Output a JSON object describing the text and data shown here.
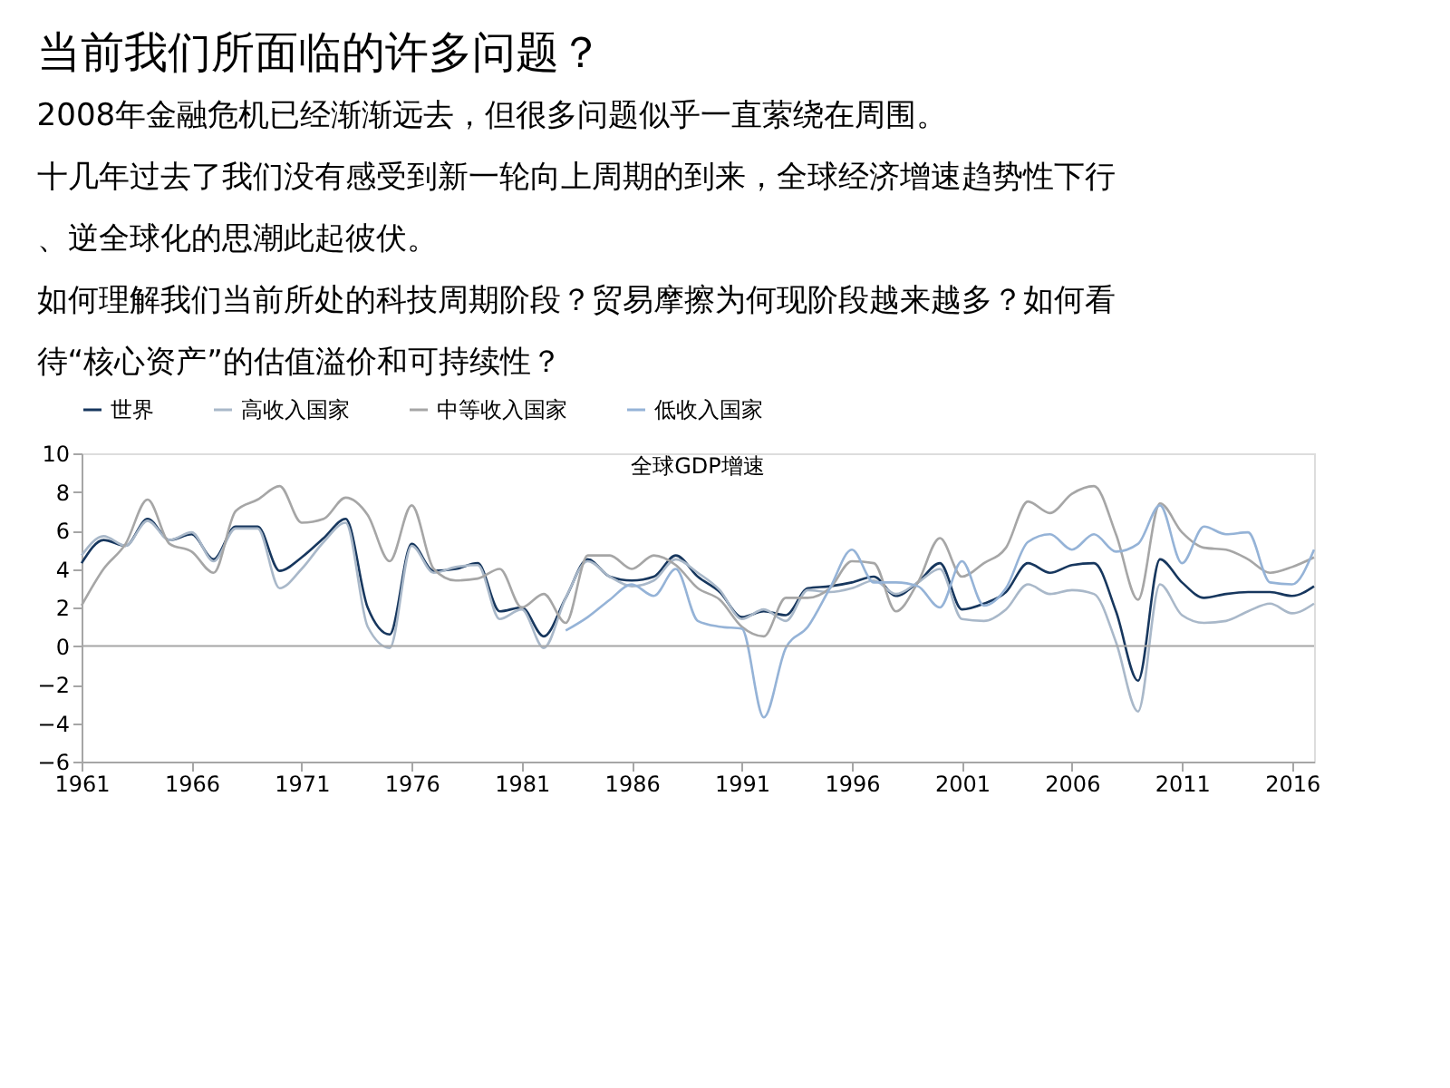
{
  "chart_data": {
    "type": "line",
    "title": "当前我们所面临的许多问题？",
    "subtitle": "全球GDP增速",
    "annotations": [
      "2008年金融危机已经渐渐远去，但很多问题似乎一直萦绕在周围。",
      "十几年过去了我们没有感受到新一轮向上周期的到来，全球经济增速趋势性下行、逆全球化的思潮此起彼伏。",
      "如何理解我们当前所处的科技周期阶段？贸易摩擦为何现阶段越来越多？如何看待“核心资产”的估值溢价和可持续性？"
    ],
    "x": [
      1961,
      1962,
      1963,
      1964,
      1965,
      1966,
      1967,
      1968,
      1969,
      1970,
      1971,
      1972,
      1973,
      1974,
      1975,
      1976,
      1977,
      1978,
      1979,
      1980,
      1981,
      1982,
      1983,
      1984,
      1985,
      1986,
      1987,
      1988,
      1989,
      1990,
      1991,
      1992,
      1993,
      1994,
      1995,
      1996,
      1997,
      1998,
      1999,
      2000,
      2001,
      2002,
      2003,
      2004,
      2005,
      2006,
      2007,
      2008,
      2009,
      2010,
      2011,
      2012,
      2013,
      2014,
      2015,
      2016,
      2017
    ],
    "xlim": [
      1961,
      2017
    ],
    "xticks": [
      1961,
      1966,
      1971,
      1976,
      1981,
      1986,
      1991,
      1996,
      2001,
      2006,
      2011,
      2016
    ],
    "ylim": [
      -6,
      10
    ],
    "yticks": [
      -6,
      -4,
      -2,
      0,
      2,
      4,
      6,
      8,
      10
    ],
    "ref_lines": [
      {
        "axis": "y",
        "value": 0,
        "color": "#a6a6a6"
      }
    ],
    "legend": "top",
    "line_style": "solid",
    "series": [
      {
        "name": "世界",
        "color": "#17375e",
        "values": [
          4.3,
          5.5,
          5.2,
          6.6,
          5.5,
          5.8,
          4.5,
          6.2,
          6.2,
          3.9,
          4.6,
          5.6,
          6.6,
          2.0,
          0.6,
          5.3,
          3.9,
          4.0,
          4.3,
          1.8,
          2.0,
          0.5,
          2.5,
          4.5,
          3.6,
          3.4,
          3.6,
          4.7,
          3.6,
          2.8,
          1.5,
          1.8,
          1.6,
          3.0,
          3.1,
          3.3,
          3.6,
          2.6,
          3.3,
          4.3,
          1.9,
          2.2,
          2.8,
          4.3,
          3.8,
          4.2,
          4.3,
          1.8,
          -1.8,
          4.5,
          3.3,
          2.5,
          2.7,
          2.8,
          2.8,
          2.6,
          3.1
        ]
      },
      {
        "name": "高收入国家",
        "color": "#a9b8c9",
        "values": [
          4.7,
          5.7,
          5.2,
          6.5,
          5.5,
          5.9,
          4.4,
          6.1,
          6.1,
          3.0,
          4.0,
          5.4,
          6.4,
          1.0,
          -0.1,
          5.2,
          3.8,
          4.1,
          4.2,
          1.4,
          1.9,
          -0.1,
          2.5,
          4.4,
          3.6,
          3.1,
          3.4,
          4.5,
          3.8,
          2.9,
          1.4,
          1.9,
          1.3,
          2.9,
          2.8,
          3.0,
          3.4,
          2.7,
          3.3,
          4.0,
          1.4,
          1.3,
          1.9,
          3.2,
          2.7,
          2.9,
          2.7,
          0.2,
          -3.4,
          3.2,
          1.6,
          1.2,
          1.3,
          1.8,
          2.2,
          1.7,
          2.2
        ]
      },
      {
        "name": "中等收入国家",
        "color": "#a6a6a6",
        "values": [
          2.1,
          4.0,
          5.3,
          7.6,
          5.3,
          4.9,
          3.8,
          7.0,
          7.6,
          8.3,
          6.4,
          6.6,
          7.7,
          6.8,
          4.4,
          7.3,
          4.0,
          3.4,
          3.5,
          4.0,
          2.0,
          2.7,
          1.2,
          4.7,
          4.7,
          4.0,
          4.7,
          4.2,
          3.0,
          2.4,
          1.0,
          0.5,
          2.5,
          2.5,
          3.0,
          4.4,
          4.3,
          1.8,
          3.3,
          5.6,
          3.6,
          4.3,
          5.1,
          7.5,
          6.9,
          7.9,
          8.3,
          5.8,
          2.4,
          7.4,
          5.9,
          5.1,
          5.0,
          4.5,
          3.8,
          4.1,
          4.6
        ]
      },
      {
        "name": "低收入国家",
        "color": "#95b3d7",
        "values": [
          null,
          null,
          null,
          null,
          null,
          null,
          null,
          null,
          null,
          null,
          null,
          null,
          null,
          null,
          null,
          null,
          null,
          null,
          null,
          null,
          null,
          null,
          0.8,
          1.5,
          2.4,
          3.2,
          2.6,
          4.0,
          1.3,
          1.0,
          0.9,
          -3.7,
          -0.1,
          1.0,
          3.0,
          5.0,
          3.3,
          3.3,
          3.1,
          2.0,
          4.4,
          2.1,
          3.0,
          5.4,
          5.8,
          5.0,
          5.8,
          4.9,
          5.3,
          7.3,
          4.3,
          6.2,
          5.8,
          5.9,
          3.3,
          3.2,
          5.0
        ]
      }
    ]
  }
}
